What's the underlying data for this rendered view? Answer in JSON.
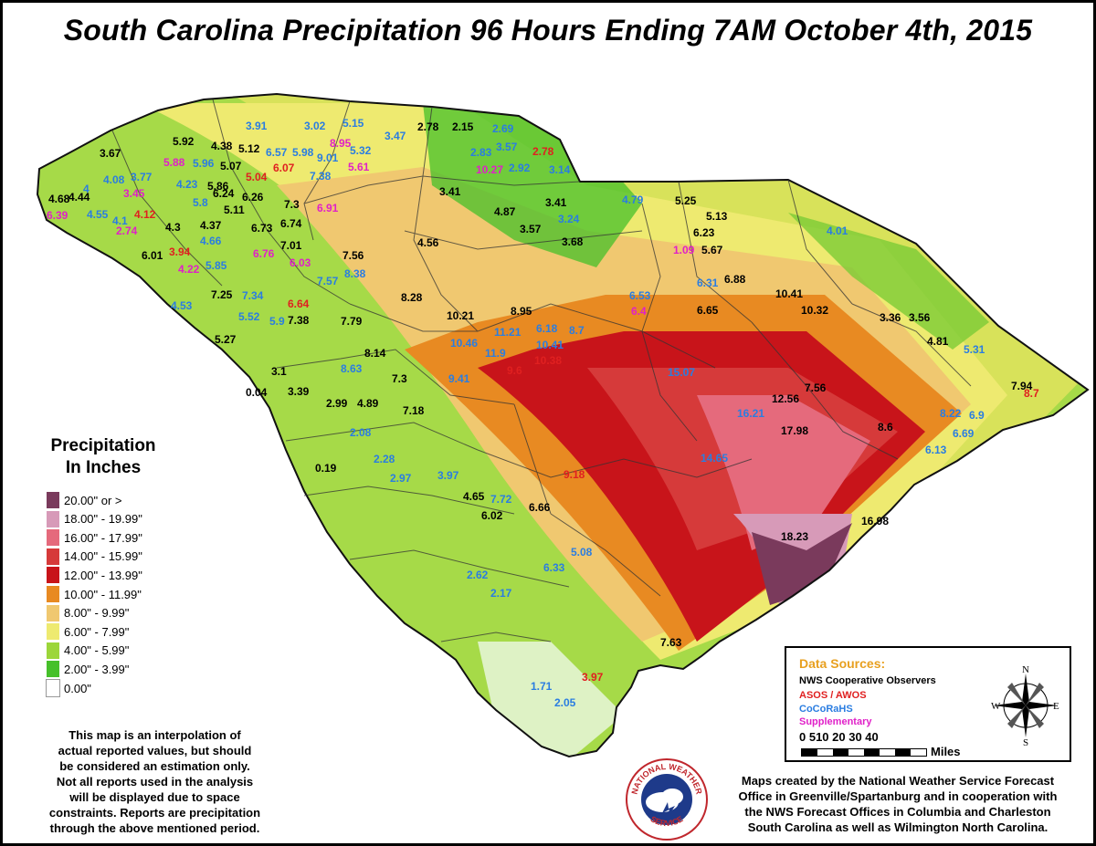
{
  "title": "South Carolina Precipitation 96 Hours Ending 7AM October 4th, 2015",
  "legend": {
    "title_line1": "Precipitation",
    "title_line2": "In Inches",
    "items": [
      {
        "label": "20.00\" or >",
        "color": "#7a3a5c"
      },
      {
        "label": "18.00\" - 19.99\"",
        "color": "#d79ab8"
      },
      {
        "label": "16.00\" - 17.99\"",
        "color": "#e56a7c"
      },
      {
        "label": "14.00\" - 15.99\"",
        "color": "#d63a3a"
      },
      {
        "label": "12.00\" - 13.99\"",
        "color": "#c8141a"
      },
      {
        "label": "10.00\" - 11.99\"",
        "color": "#e88a22"
      },
      {
        "label": "8.00\" - 9.99\"",
        "color": "#f0c870"
      },
      {
        "label": "6.00\" - 7.99\"",
        "color": "#eeea70"
      },
      {
        "label": "4.00\" - 5.99\"",
        "color": "#9cd63a"
      },
      {
        "label": "2.00\" - 3.99\"",
        "color": "#46c02a"
      },
      {
        "label": "0.00\"",
        "color": "#ffffff"
      }
    ]
  },
  "disclaimer": [
    "This map is an interpolation of",
    "actual reported values, but should",
    "be considered an estimation only.",
    "Not all reports used in the analysis",
    "will be displayed due to space",
    "constraints. Reports are precipitation",
    "through the above mentioned period."
  ],
  "data_sources": {
    "title": "Data Sources:",
    "items": [
      {
        "label": "NWS Cooperative Observers",
        "color": "#000000"
      },
      {
        "label": "ASOS / AWOS",
        "color": "#e02020"
      },
      {
        "label": "CoCoRaHS",
        "color": "#2a7de1"
      },
      {
        "label": "Supplementary",
        "color": "#e020c8"
      }
    ],
    "scale_labels": "0 510  20  30  40",
    "scale_unit": "Miles",
    "compass": {
      "n": "N",
      "s": "S",
      "e": "E",
      "w": "W"
    }
  },
  "credits": [
    "Maps created by the National Weather Service Forecast",
    "Office in Greenville/Spartanburg and in cooperation with",
    "the NWS Forecast Offices in Columbia and Charleston",
    "South Carolina as well as Wilmington North Carolina."
  ],
  "logo_text": {
    "top": "NATIONAL WEATHER",
    "bottom": "SERVICE"
  },
  "source_colors": {
    "coop": "#000000",
    "asos": "#e02020",
    "cocorahs": "#2a7de1",
    "supp": "#e020c8"
  },
  "observations": [
    {
      "v": "3.91",
      "s": "cocorahs"
    },
    {
      "v": "3.02",
      "s": "cocorahs"
    },
    {
      "v": "5.15",
      "s": "cocorahs"
    },
    {
      "v": "2.78",
      "s": "coop"
    },
    {
      "v": "2.15",
      "s": "coop"
    },
    {
      "v": "2.69",
      "s": "cocorahs"
    },
    {
      "v": "5.92",
      "s": "coop"
    },
    {
      "v": "4.38",
      "s": "coop"
    },
    {
      "v": "5.12",
      "s": "coop"
    },
    {
      "v": "6.57",
      "s": "cocorahs"
    },
    {
      "v": "5.98",
      "s": "cocorahs"
    },
    {
      "v": "8.95",
      "s": "supp"
    },
    {
      "v": "3.47",
      "s": "cocorahs"
    },
    {
      "v": "2.83",
      "s": "cocorahs"
    },
    {
      "v": "3.57",
      "s": "cocorahs"
    },
    {
      "v": "2.78",
      "s": "asos"
    },
    {
      "v": "3.67",
      "s": "coop"
    },
    {
      "v": "5.88",
      "s": "supp"
    },
    {
      "v": "5.96",
      "s": "cocorahs"
    },
    {
      "v": "5.07",
      "s": "coop"
    },
    {
      "v": "9.01",
      "s": "cocorahs"
    },
    {
      "v": "5.32",
      "s": "cocorahs"
    },
    {
      "v": "10.27",
      "s": "supp"
    },
    {
      "v": "2.92",
      "s": "cocorahs"
    },
    {
      "v": "3.14",
      "s": "cocorahs"
    },
    {
      "v": "4.08",
      "s": "cocorahs"
    },
    {
      "v": "3.77",
      "s": "cocorahs"
    },
    {
      "v": "6.07",
      "s": "asos"
    },
    {
      "v": "5.61",
      "s": "supp"
    },
    {
      "v": "5.04",
      "s": "asos"
    },
    {
      "v": "7.38",
      "s": "cocorahs"
    },
    {
      "v": "4",
      "s": "cocorahs"
    },
    {
      "v": "4.23",
      "s": "cocorahs"
    },
    {
      "v": "5.86",
      "s": "coop"
    },
    {
      "v": "4.68",
      "s": "coop"
    },
    {
      "v": "4.44",
      "s": "coop"
    },
    {
      "v": "3.45",
      "s": "supp"
    },
    {
      "v": "6.24",
      "s": "coop"
    },
    {
      "v": "6.26",
      "s": "coop"
    },
    {
      "v": "3.41",
      "s": "coop"
    },
    {
      "v": "5.8",
      "s": "cocorahs"
    },
    {
      "v": "7.3",
      "s": "coop"
    },
    {
      "v": "6.91",
      "s": "supp"
    },
    {
      "v": "4.87",
      "s": "coop"
    },
    {
      "v": "3.41",
      "s": "coop"
    },
    {
      "v": "4.79",
      "s": "cocorahs"
    },
    {
      "v": "5.25",
      "s": "coop"
    },
    {
      "v": "6.39",
      "s": "supp"
    },
    {
      "v": "4.55",
      "s": "cocorahs"
    },
    {
      "v": "4.1",
      "s": "cocorahs"
    },
    {
      "v": "4.12",
      "s": "asos"
    },
    {
      "v": "5.11",
      "s": "coop"
    },
    {
      "v": "5.13",
      "s": "coop"
    },
    {
      "v": "3.24",
      "s": "cocorahs"
    },
    {
      "v": "4.37",
      "s": "coop"
    },
    {
      "v": "6.73",
      "s": "coop"
    },
    {
      "v": "6.74",
      "s": "coop"
    },
    {
      "v": "4.01",
      "s": "cocorahs"
    },
    {
      "v": "2.74",
      "s": "supp"
    },
    {
      "v": "4.3",
      "s": "coop"
    },
    {
      "v": "4.66",
      "s": "cocorahs"
    },
    {
      "v": "3.57",
      "s": "coop"
    },
    {
      "v": "6.23",
      "s": "coop"
    },
    {
      "v": "4.56",
      "s": "coop"
    },
    {
      "v": "3.68",
      "s": "coop"
    },
    {
      "v": "7.01",
      "s": "coop"
    },
    {
      "v": "6.01",
      "s": "coop"
    },
    {
      "v": "3.94",
      "s": "asos"
    },
    {
      "v": "6.76",
      "s": "supp"
    },
    {
      "v": "1.09",
      "s": "supp"
    },
    {
      "v": "5.67",
      "s": "coop"
    },
    {
      "v": "7.56",
      "s": "coop"
    },
    {
      "v": "6.03",
      "s": "supp"
    },
    {
      "v": "4.22",
      "s": "supp"
    },
    {
      "v": "5.85",
      "s": "cocorahs"
    },
    {
      "v": "8.38",
      "s": "cocorahs"
    },
    {
      "v": "6.88",
      "s": "coop"
    },
    {
      "v": "7.57",
      "s": "cocorahs"
    },
    {
      "v": "6.31",
      "s": "cocorahs"
    },
    {
      "v": "6.53",
      "s": "cocorahs"
    },
    {
      "v": "10.41",
      "s": "coop"
    },
    {
      "v": "7.25",
      "s": "coop"
    },
    {
      "v": "7.34",
      "s": "cocorahs"
    },
    {
      "v": "8.28",
      "s": "coop"
    },
    {
      "v": "4.53",
      "s": "cocorahs"
    },
    {
      "v": "6.64",
      "s": "asos"
    },
    {
      "v": "8.95",
      "s": "coop"
    },
    {
      "v": "6.4",
      "s": "supp"
    },
    {
      "v": "6.65",
      "s": "coop"
    },
    {
      "v": "10.32",
      "s": "coop"
    },
    {
      "v": "10.21",
      "s": "coop"
    },
    {
      "v": "5.52",
      "s": "cocorahs"
    },
    {
      "v": "5.9",
      "s": "cocorahs"
    },
    {
      "v": "7.38",
      "s": "coop"
    },
    {
      "v": "7.79",
      "s": "coop"
    },
    {
      "v": "6.18",
      "s": "cocorahs"
    },
    {
      "v": "8.7",
      "s": "cocorahs"
    },
    {
      "v": "3.36",
      "s": "coop"
    },
    {
      "v": "3.56",
      "s": "coop"
    },
    {
      "v": "11.21",
      "s": "cocorahs"
    },
    {
      "v": "10.41",
      "s": "cocorahs"
    },
    {
      "v": "5.27",
      "s": "coop"
    },
    {
      "v": "10.46",
      "s": "cocorahs"
    },
    {
      "v": "8.14",
      "s": "coop"
    },
    {
      "v": "10.38",
      "s": "asos"
    },
    {
      "v": "4.81",
      "s": "coop"
    },
    {
      "v": "5.31",
      "s": "cocorahs"
    },
    {
      "v": "11.9",
      "s": "cocorahs"
    },
    {
      "v": "8.63",
      "s": "cocorahs"
    },
    {
      "v": "15.07",
      "s": "cocorahs"
    },
    {
      "v": "3.1",
      "s": "coop"
    },
    {
      "v": "9.6",
      "s": "asos"
    },
    {
      "v": "7.3",
      "s": "coop"
    },
    {
      "v": "9.41",
      "s": "cocorahs"
    },
    {
      "v": "7.94",
      "s": "coop"
    },
    {
      "v": "8.7",
      "s": "asos"
    },
    {
      "v": "0.04",
      "s": "coop"
    },
    {
      "v": "3.39",
      "s": "coop"
    },
    {
      "v": "7.56",
      "s": "coop"
    },
    {
      "v": "12.56",
      "s": "coop"
    },
    {
      "v": "2.99",
      "s": "coop"
    },
    {
      "v": "4.89",
      "s": "coop"
    },
    {
      "v": "7.18",
      "s": "coop"
    },
    {
      "v": "16.21",
      "s": "cocorahs"
    },
    {
      "v": "8.22",
      "s": "cocorahs"
    },
    {
      "v": "6.9",
      "s": "cocorahs"
    },
    {
      "v": "17.98",
      "s": "coop"
    },
    {
      "v": "8.6",
      "s": "coop"
    },
    {
      "v": "2.08",
      "s": "cocorahs"
    },
    {
      "v": "6.69",
      "s": "cocorahs"
    },
    {
      "v": "6.13",
      "s": "cocorahs"
    },
    {
      "v": "14.65",
      "s": "cocorahs"
    },
    {
      "v": "0.19",
      "s": "coop"
    },
    {
      "v": "2.28",
      "s": "cocorahs"
    },
    {
      "v": "2.97",
      "s": "cocorahs"
    },
    {
      "v": "3.97",
      "s": "cocorahs"
    },
    {
      "v": "9.18",
      "s": "asos"
    },
    {
      "v": "4.65",
      "s": "coop"
    },
    {
      "v": "7.72",
      "s": "cocorahs"
    },
    {
      "v": "6.66",
      "s": "coop"
    },
    {
      "v": "6.02",
      "s": "coop"
    },
    {
      "v": "16.98",
      "s": "coop"
    },
    {
      "v": "18.23",
      "s": "coop"
    },
    {
      "v": "5.08",
      "s": "cocorahs"
    },
    {
      "v": "6.33",
      "s": "cocorahs"
    },
    {
      "v": "2.62",
      "s": "cocorahs"
    },
    {
      "v": "2.17",
      "s": "cocorahs"
    },
    {
      "v": "7.63",
      "s": "coop"
    },
    {
      "v": "3.97",
      "s": "asos"
    },
    {
      "v": "1.71",
      "s": "cocorahs"
    },
    {
      "v": "2.05",
      "s": "cocorahs"
    }
  ]
}
